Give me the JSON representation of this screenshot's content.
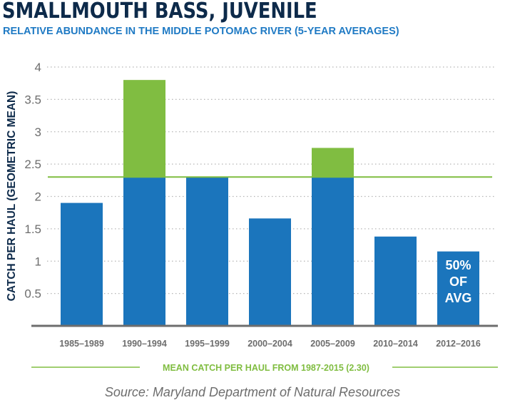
{
  "chart_data": {
    "type": "bar",
    "title": "SMALLMOUTH BASS, JUVENILE",
    "subtitle": "RELATIVE ABUNDANCE IN THE MIDDLE POTOMAC RIVER (5-YEAR AVERAGES)",
    "xlabel": "",
    "ylabel": "CATCH PER HAUL (GEOMETRIC MEAN)",
    "ylim": [
      0,
      4
    ],
    "yticks": [
      "0.5",
      "1",
      "1.5",
      "2",
      "2.5",
      "3",
      "3.5",
      "4"
    ],
    "ytick_values": [
      0.5,
      1,
      1.5,
      2,
      2.5,
      3,
      3.5,
      4
    ],
    "grid": "horizontal dotted",
    "categories": [
      "1985–1989",
      "1990–1994",
      "1995–1999",
      "2000–2004",
      "2005–2009",
      "2010–2014",
      "2012–2016"
    ],
    "values": [
      1.9,
      3.8,
      2.3,
      1.66,
      2.75,
      1.38,
      1.15
    ],
    "reference_line": {
      "value": 2.3,
      "label": "MEAN CATCH PER HAUL FROM 1987-2015 (2.30)"
    },
    "bar_annotation": {
      "category": "2012–2016",
      "lines": [
        "50%",
        "OF",
        "AVG"
      ]
    },
    "colors": {
      "below_mean": "#1b75bc",
      "above_mean": "#80bd41",
      "mean_line": "#80bd41",
      "axis": "#6d6d6d",
      "title": "#0d2a4a",
      "subtitle": "#1f7ac4"
    }
  },
  "source": "Source: Maryland Department of Natural Resources"
}
